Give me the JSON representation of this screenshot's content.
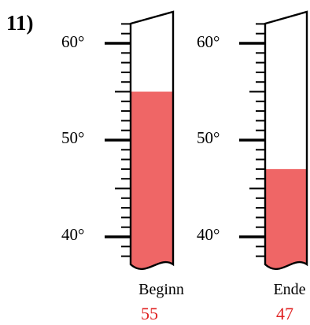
{
  "problem": {
    "number": "11)"
  },
  "scale": {
    "min": 37.5,
    "max": 62.5,
    "major_step": 10,
    "minor_step": 1
  },
  "colors": {
    "fill": "#ef6666",
    "value_text": "#e02020",
    "outline": "#000000"
  },
  "thermometers": [
    {
      "label": "Beginn",
      "value_text": "55",
      "reading": 55,
      "tick_labels": [
        "60°",
        "50°",
        "40°"
      ]
    },
    {
      "label": "Ende",
      "value_text": "47",
      "reading": 47,
      "tick_labels": [
        "60°",
        "50°",
        "40°"
      ]
    }
  ]
}
